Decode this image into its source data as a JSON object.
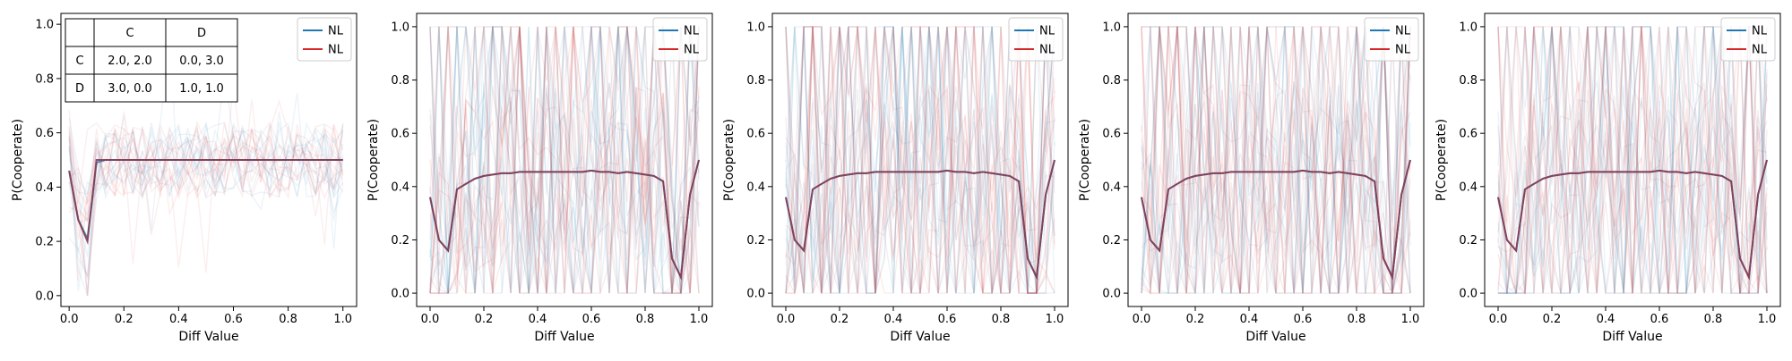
{
  "figure": {
    "payoff_table": {
      "headers": [
        "",
        "C",
        "D"
      ],
      "rows": [
        [
          "C",
          "2.0, 2.0",
          "0.0, 3.0"
        ],
        [
          "D",
          "3.0, 0.0",
          "1.0, 1.0"
        ]
      ]
    }
  },
  "colors": {
    "blue": "#1f77b4",
    "red": "#d62728",
    "dark": "#8b3a50"
  },
  "chart_data": [
    {
      "type": "line",
      "title": "",
      "xlabel": "Diff Value",
      "ylabel": "P(Cooperate)",
      "xlim": [
        -0.03,
        1.05
      ],
      "ylim": [
        -0.04,
        1.04
      ],
      "xticks": [
        "0.0",
        "0.2",
        "0.4",
        "0.6",
        "0.8",
        "1.0"
      ],
      "yticks": [
        "0.0",
        "0.2",
        "0.4",
        "0.6",
        "0.8",
        "1.0"
      ],
      "legend": {
        "position": "top-right",
        "entries": [
          "NL",
          "NL"
        ]
      },
      "grid": false,
      "x": [
        0.0,
        0.033,
        0.067,
        0.1,
        0.133,
        0.167,
        0.2,
        0.233,
        0.267,
        0.3,
        0.333,
        0.367,
        0.4,
        0.433,
        0.467,
        0.5,
        0.533,
        0.567,
        0.6,
        0.633,
        0.667,
        0.7,
        0.733,
        0.767,
        0.8,
        0.833,
        0.867,
        0.9,
        0.933,
        0.967,
        1.0
      ],
      "series": [
        {
          "name": "NL",
          "color": "#1f77b4",
          "values": [
            0.46,
            0.28,
            0.21,
            0.49,
            0.5,
            0.5,
            0.5,
            0.5,
            0.5,
            0.5,
            0.5,
            0.5,
            0.5,
            0.5,
            0.5,
            0.5,
            0.5,
            0.5,
            0.5,
            0.5,
            0.5,
            0.5,
            0.5,
            0.5,
            0.5,
            0.5,
            0.5,
            0.5,
            0.5,
            0.5,
            0.5
          ]
        },
        {
          "name": "NL",
          "color": "#d62728",
          "values": [
            0.46,
            0.28,
            0.2,
            0.5,
            0.5,
            0.5,
            0.5,
            0.5,
            0.5,
            0.5,
            0.5,
            0.5,
            0.5,
            0.5,
            0.5,
            0.5,
            0.5,
            0.5,
            0.5,
            0.5,
            0.5,
            0.5,
            0.5,
            0.5,
            0.5,
            0.5,
            0.5,
            0.5,
            0.5,
            0.5,
            0.5
          ]
        }
      ],
      "noise": "low"
    },
    {
      "type": "line",
      "title": "",
      "xlabel": "Diff Value",
      "ylabel": "P(Cooperate)",
      "xlim": [
        -0.05,
        1.05
      ],
      "ylim": [
        -0.05,
        1.05
      ],
      "xticks": [
        "0.0",
        "0.2",
        "0.4",
        "0.6",
        "0.8",
        "1.0"
      ],
      "yticks": [
        "0.0",
        "0.2",
        "0.4",
        "0.6",
        "0.8",
        "1.0"
      ],
      "legend": {
        "position": "top-right",
        "entries": [
          "NL",
          "NL"
        ]
      },
      "grid": false,
      "x": [
        0.0,
        0.033,
        0.067,
        0.1,
        0.133,
        0.167,
        0.2,
        0.233,
        0.267,
        0.3,
        0.333,
        0.367,
        0.4,
        0.433,
        0.467,
        0.5,
        0.533,
        0.567,
        0.6,
        0.633,
        0.667,
        0.7,
        0.733,
        0.767,
        0.8,
        0.833,
        0.867,
        0.9,
        0.933,
        0.967,
        1.0
      ],
      "series": [
        {
          "name": "NL",
          "color": "#1f77b4",
          "values": [
            0.36,
            0.2,
            0.16,
            0.39,
            0.41,
            0.43,
            0.44,
            0.445,
            0.45,
            0.45,
            0.455,
            0.455,
            0.455,
            0.455,
            0.455,
            0.455,
            0.455,
            0.455,
            0.46,
            0.455,
            0.455,
            0.45,
            0.455,
            0.45,
            0.445,
            0.44,
            0.42,
            0.13,
            0.06,
            0.37,
            0.5
          ]
        },
        {
          "name": "NL",
          "color": "#d62728",
          "values": [
            0.36,
            0.2,
            0.16,
            0.39,
            0.41,
            0.43,
            0.44,
            0.445,
            0.45,
            0.45,
            0.455,
            0.455,
            0.455,
            0.455,
            0.455,
            0.455,
            0.455,
            0.455,
            0.46,
            0.455,
            0.455,
            0.45,
            0.455,
            0.45,
            0.445,
            0.44,
            0.42,
            0.13,
            0.06,
            0.37,
            0.5
          ]
        }
      ],
      "noise": "high"
    },
    {
      "type": "line",
      "title": "",
      "xlabel": "Diff Value",
      "ylabel": "P(Cooperate)",
      "xlim": [
        -0.05,
        1.05
      ],
      "ylim": [
        -0.05,
        1.05
      ],
      "xticks": [
        "0.0",
        "0.2",
        "0.4",
        "0.6",
        "0.8",
        "1.0"
      ],
      "yticks": [
        "0.0",
        "0.2",
        "0.4",
        "0.6",
        "0.8",
        "1.0"
      ],
      "legend": {
        "position": "top-right",
        "entries": [
          "NL",
          "NL"
        ]
      },
      "grid": false,
      "x": [
        0.0,
        0.033,
        0.067,
        0.1,
        0.133,
        0.167,
        0.2,
        0.233,
        0.267,
        0.3,
        0.333,
        0.367,
        0.4,
        0.433,
        0.467,
        0.5,
        0.533,
        0.567,
        0.6,
        0.633,
        0.667,
        0.7,
        0.733,
        0.767,
        0.8,
        0.833,
        0.867,
        0.9,
        0.933,
        0.967,
        1.0
      ],
      "series": [
        {
          "name": "NL",
          "color": "#1f77b4",
          "values": [
            0.36,
            0.2,
            0.16,
            0.39,
            0.41,
            0.43,
            0.44,
            0.445,
            0.45,
            0.45,
            0.455,
            0.455,
            0.455,
            0.455,
            0.455,
            0.455,
            0.455,
            0.455,
            0.46,
            0.455,
            0.455,
            0.45,
            0.455,
            0.45,
            0.445,
            0.44,
            0.42,
            0.13,
            0.06,
            0.37,
            0.5
          ]
        },
        {
          "name": "NL",
          "color": "#d62728",
          "values": [
            0.36,
            0.2,
            0.16,
            0.39,
            0.41,
            0.43,
            0.44,
            0.445,
            0.45,
            0.45,
            0.455,
            0.455,
            0.455,
            0.455,
            0.455,
            0.455,
            0.455,
            0.455,
            0.46,
            0.455,
            0.455,
            0.45,
            0.455,
            0.45,
            0.445,
            0.44,
            0.42,
            0.13,
            0.06,
            0.37,
            0.5
          ]
        }
      ],
      "noise": "high"
    },
    {
      "type": "line",
      "title": "",
      "xlabel": "Diff Value",
      "ylabel": "P(Cooperate)",
      "xlim": [
        -0.05,
        1.05
      ],
      "ylim": [
        -0.05,
        1.05
      ],
      "xticks": [
        "0.0",
        "0.2",
        "0.4",
        "0.6",
        "0.8",
        "1.0"
      ],
      "yticks": [
        "0.0",
        "0.2",
        "0.4",
        "0.6",
        "0.8",
        "1.0"
      ],
      "legend": {
        "position": "top-right",
        "entries": [
          "NL",
          "NL"
        ]
      },
      "grid": false,
      "x": [
        0.0,
        0.033,
        0.067,
        0.1,
        0.133,
        0.167,
        0.2,
        0.233,
        0.267,
        0.3,
        0.333,
        0.367,
        0.4,
        0.433,
        0.467,
        0.5,
        0.533,
        0.567,
        0.6,
        0.633,
        0.667,
        0.7,
        0.733,
        0.767,
        0.8,
        0.833,
        0.867,
        0.9,
        0.933,
        0.967,
        1.0
      ],
      "series": [
        {
          "name": "NL",
          "color": "#1f77b4",
          "values": [
            0.36,
            0.2,
            0.16,
            0.39,
            0.41,
            0.43,
            0.44,
            0.445,
            0.45,
            0.45,
            0.455,
            0.455,
            0.455,
            0.455,
            0.455,
            0.455,
            0.455,
            0.455,
            0.46,
            0.455,
            0.455,
            0.45,
            0.455,
            0.45,
            0.445,
            0.44,
            0.42,
            0.13,
            0.06,
            0.37,
            0.5
          ]
        },
        {
          "name": "NL",
          "color": "#d62728",
          "values": [
            0.36,
            0.2,
            0.16,
            0.39,
            0.41,
            0.43,
            0.44,
            0.445,
            0.45,
            0.45,
            0.455,
            0.455,
            0.455,
            0.455,
            0.455,
            0.455,
            0.455,
            0.455,
            0.46,
            0.455,
            0.455,
            0.45,
            0.455,
            0.45,
            0.445,
            0.44,
            0.42,
            0.13,
            0.06,
            0.37,
            0.5
          ]
        }
      ],
      "noise": "high"
    },
    {
      "type": "line",
      "title": "",
      "xlabel": "Diff Value",
      "ylabel": "P(Cooperate)",
      "xlim": [
        -0.05,
        1.05
      ],
      "ylim": [
        -0.05,
        1.05
      ],
      "xticks": [
        "0.0",
        "0.2",
        "0.4",
        "0.6",
        "0.8",
        "1.0"
      ],
      "yticks": [
        "0.0",
        "0.2",
        "0.4",
        "0.6",
        "0.8",
        "1.0"
      ],
      "legend": {
        "position": "top-right",
        "entries": [
          "NL",
          "NL"
        ]
      },
      "grid": false,
      "x": [
        0.0,
        0.033,
        0.067,
        0.1,
        0.133,
        0.167,
        0.2,
        0.233,
        0.267,
        0.3,
        0.333,
        0.367,
        0.4,
        0.433,
        0.467,
        0.5,
        0.533,
        0.567,
        0.6,
        0.633,
        0.667,
        0.7,
        0.733,
        0.767,
        0.8,
        0.833,
        0.867,
        0.9,
        0.933,
        0.967,
        1.0
      ],
      "series": [
        {
          "name": "NL",
          "color": "#1f77b4",
          "values": [
            0.36,
            0.2,
            0.16,
            0.39,
            0.41,
            0.43,
            0.44,
            0.445,
            0.45,
            0.45,
            0.455,
            0.455,
            0.455,
            0.455,
            0.455,
            0.455,
            0.455,
            0.455,
            0.46,
            0.455,
            0.455,
            0.45,
            0.455,
            0.45,
            0.445,
            0.44,
            0.42,
            0.13,
            0.06,
            0.37,
            0.5
          ]
        },
        {
          "name": "NL",
          "color": "#d62728",
          "values": [
            0.36,
            0.2,
            0.16,
            0.39,
            0.41,
            0.43,
            0.44,
            0.445,
            0.45,
            0.45,
            0.455,
            0.455,
            0.455,
            0.455,
            0.455,
            0.455,
            0.455,
            0.455,
            0.46,
            0.455,
            0.455,
            0.45,
            0.455,
            0.45,
            0.445,
            0.44,
            0.42,
            0.13,
            0.06,
            0.37,
            0.5
          ]
        }
      ],
      "noise": "high"
    }
  ]
}
